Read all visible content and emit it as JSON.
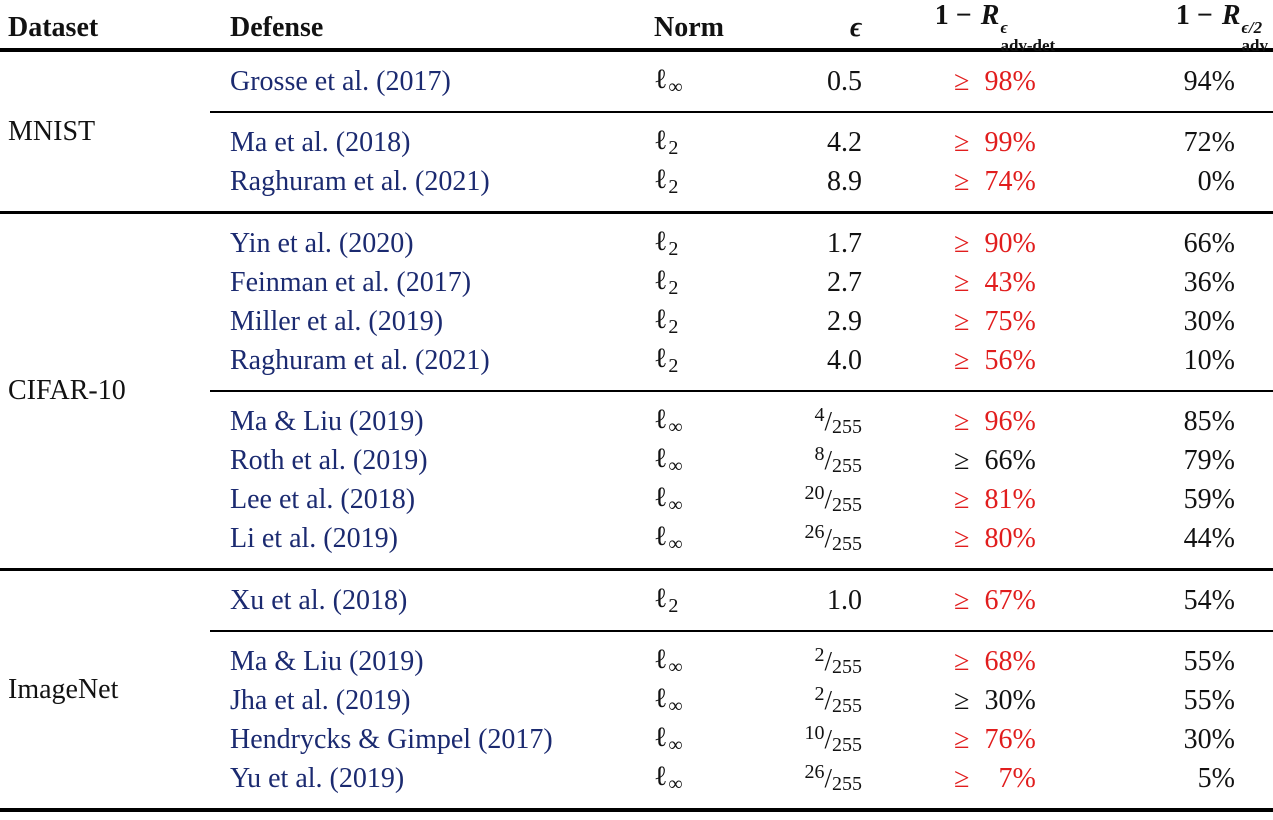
{
  "table": {
    "colors": {
      "citation": "#1b2a70",
      "highlight": "#e11d1d"
    },
    "header": {
      "dataset": "Dataset",
      "defense": "Defense",
      "norm": "Norm",
      "epsilon": "ϵ",
      "col5": {
        "lead": "1 − ",
        "var": "R",
        "sup": "ϵ",
        "sub": "adv-det"
      },
      "col6": {
        "lead": "1 − ",
        "var": "R",
        "sup": "ϵ/2",
        "sub": "adv"
      }
    },
    "norm_base": "ℓ",
    "geq_symbol": "≥",
    "percent": "%",
    "sections": [
      {
        "dataset": "MNIST",
        "groups": [
          {
            "rows": [
              {
                "defense": "Grosse et al. (2017)",
                "norm_sub": "∞",
                "eps": "0.5",
                "bound": "98",
                "bound_red": true,
                "adv": "94%"
              }
            ]
          },
          {
            "rows": [
              {
                "defense": "Ma et al. (2018)",
                "norm_sub": "2",
                "eps": "4.2",
                "bound": "99",
                "bound_red": true,
                "adv": "72%"
              },
              {
                "defense": "Raghuram et al. (2021)",
                "norm_sub": "2",
                "eps": "8.9",
                "bound": "74",
                "bound_red": true,
                "adv": "0%"
              }
            ]
          }
        ]
      },
      {
        "dataset": "CIFAR-10",
        "groups": [
          {
            "rows": [
              {
                "defense": "Yin et al. (2020)",
                "norm_sub": "2",
                "eps": "1.7",
                "bound": "90",
                "bound_red": true,
                "adv": "66%"
              },
              {
                "defense": "Feinman et al. (2017)",
                "norm_sub": "2",
                "eps": "2.7",
                "bound": "43",
                "bound_red": true,
                "adv": "36%"
              },
              {
                "defense": "Miller et al. (2019)",
                "norm_sub": "2",
                "eps": "2.9",
                "bound": "75",
                "bound_red": true,
                "adv": "30%"
              },
              {
                "defense": "Raghuram et al. (2021)",
                "norm_sub": "2",
                "eps": "4.0",
                "bound": "56",
                "bound_red": true,
                "adv": "10%"
              }
            ]
          },
          {
            "rows": [
              {
                "defense": "Ma & Liu (2019)",
                "norm_sub": "∞",
                "eps": "4/255",
                "bound": "96",
                "bound_red": true,
                "adv": "85%"
              },
              {
                "defense": "Roth et al. (2019)",
                "norm_sub": "∞",
                "eps": "8/255",
                "bound": "66",
                "bound_red": false,
                "adv": "79%"
              },
              {
                "defense": "Lee et al. (2018)",
                "norm_sub": "∞",
                "eps": "20/255",
                "bound": "81",
                "bound_red": true,
                "adv": "59%"
              },
              {
                "defense": "Li et al. (2019)",
                "norm_sub": "∞",
                "eps": "26/255",
                "bound": "80",
                "bound_red": true,
                "adv": "44%"
              }
            ]
          }
        ]
      },
      {
        "dataset": "ImageNet",
        "groups": [
          {
            "rows": [
              {
                "defense": "Xu et al. (2018)",
                "norm_sub": "2",
                "eps": "1.0",
                "bound": "67",
                "bound_red": true,
                "adv": "54%"
              }
            ]
          },
          {
            "rows": [
              {
                "defense": "Ma & Liu (2019)",
                "norm_sub": "∞",
                "eps": "2/255",
                "bound": "68",
                "bound_red": true,
                "adv": "55%"
              },
              {
                "defense": "Jha et al. (2019)",
                "norm_sub": "∞",
                "eps": "2/255",
                "bound": "30",
                "bound_red": false,
                "adv": "55%"
              },
              {
                "defense": "Hendrycks & Gimpel (2017)",
                "norm_sub": "∞",
                "eps": "10/255",
                "bound": "76",
                "bound_red": true,
                "adv": "30%"
              },
              {
                "defense": "Yu et al. (2019)",
                "norm_sub": "∞",
                "eps": "26/255",
                "bound": "7",
                "bound_red": true,
                "adv": "5%"
              }
            ]
          }
        ]
      }
    ]
  }
}
